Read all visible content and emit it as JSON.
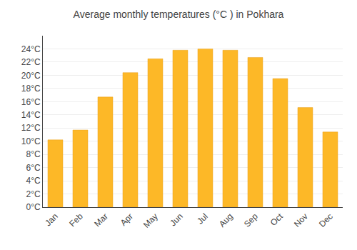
{
  "chart_data": {
    "type": "bar",
    "title": "Average monthly temperatures (°C ) in Pokhara",
    "categories": [
      "Jan",
      "Feb",
      "Mar",
      "Apr",
      "May",
      "Jun",
      "Jul",
      "Aug",
      "Sep",
      "Oct",
      "Nov",
      "Dec"
    ],
    "values": [
      10.2,
      11.7,
      16.7,
      20.4,
      22.5,
      23.8,
      24.0,
      23.8,
      22.7,
      19.5,
      15.1,
      11.4
    ],
    "color": "#FDB827",
    "ylim": [
      0,
      26
    ],
    "yticks": [
      {
        "value": 0,
        "label": "0°C"
      },
      {
        "value": 2,
        "label": "2°C"
      },
      {
        "value": 4,
        "label": "4°C"
      },
      {
        "value": 6,
        "label": "6°C"
      },
      {
        "value": 8,
        "label": "8°C"
      },
      {
        "value": 10,
        "label": "10°C"
      },
      {
        "value": 12,
        "label": "12°C"
      },
      {
        "value": 14,
        "label": "14°C"
      },
      {
        "value": 16,
        "label": "16°C"
      },
      {
        "value": 18,
        "label": "18°C"
      },
      {
        "value": 20,
        "label": "20°C"
      },
      {
        "value": 22,
        "label": "22°C"
      },
      {
        "value": 24,
        "label": "24°C"
      }
    ],
    "grid": true
  }
}
